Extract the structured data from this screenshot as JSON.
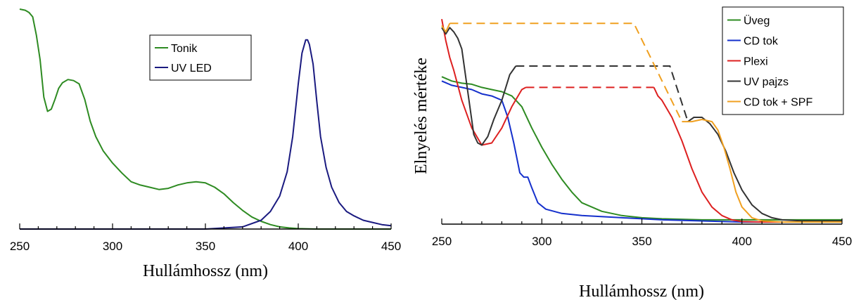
{
  "chart_data": [
    {
      "type": "line",
      "xlabel": "Hullámhossz (nm)",
      "ylabel": "",
      "xlim": [
        250,
        450
      ],
      "ylim": [
        0,
        1
      ],
      "xticks": [
        250,
        300,
        350,
        400,
        450
      ],
      "grid": false,
      "legend_position": "top-center",
      "series": [
        {
          "name": "Tonik",
          "color": "#2e8b22",
          "x": [
            250,
            253,
            255,
            257,
            259,
            261,
            263,
            265,
            267,
            269,
            271,
            273,
            276,
            279,
            282,
            285,
            288,
            291,
            295,
            300,
            305,
            310,
            315,
            320,
            325,
            330,
            335,
            340,
            345,
            350,
            355,
            360,
            365,
            370,
            375,
            380,
            385,
            390,
            395,
            400,
            410,
            420,
            430,
            440,
            450
          ],
          "y": [
            1.0,
            0.995,
            0.985,
            0.965,
            0.88,
            0.77,
            0.6,
            0.535,
            0.545,
            0.59,
            0.64,
            0.665,
            0.68,
            0.675,
            0.66,
            0.59,
            0.49,
            0.42,
            0.355,
            0.3,
            0.255,
            0.215,
            0.2,
            0.19,
            0.18,
            0.185,
            0.2,
            0.21,
            0.215,
            0.21,
            0.19,
            0.16,
            0.12,
            0.085,
            0.055,
            0.035,
            0.02,
            0.01,
            0.005,
            0.002,
            0.0,
            0.0,
            0.0,
            0.0,
            0.0
          ]
        },
        {
          "name": "UV LED",
          "color": "#1a1a80",
          "x": [
            250,
            300,
            350,
            370,
            380,
            385,
            390,
            394,
            397,
            400,
            402,
            404,
            405,
            406,
            408,
            410,
            412,
            415,
            418,
            422,
            426,
            430,
            435,
            440,
            445,
            450
          ],
          "y": [
            0.0,
            0.0,
            0.0,
            0.01,
            0.04,
            0.08,
            0.15,
            0.26,
            0.42,
            0.66,
            0.8,
            0.86,
            0.86,
            0.84,
            0.75,
            0.58,
            0.42,
            0.28,
            0.19,
            0.12,
            0.08,
            0.06,
            0.04,
            0.03,
            0.02,
            0.015
          ]
        }
      ]
    },
    {
      "type": "line",
      "xlabel": "Hullámhossz (nm)",
      "ylabel": "Elnyelés mértéke",
      "xlim": [
        250,
        450
      ],
      "ylim": [
        0,
        1
      ],
      "xticks": [
        250,
        300,
        350,
        400,
        450
      ],
      "grid": false,
      "legend_position": "top-right",
      "series": [
        {
          "name": "Üveg",
          "color": "#2e8b22",
          "x": [
            250,
            255,
            260,
            265,
            270,
            275,
            280,
            285,
            290,
            295,
            300,
            305,
            310,
            315,
            320,
            330,
            340,
            350,
            360,
            380,
            400,
            450
          ],
          "y": [
            0.69,
            0.67,
            0.66,
            0.655,
            0.64,
            0.63,
            0.62,
            0.6,
            0.55,
            0.45,
            0.36,
            0.28,
            0.21,
            0.15,
            0.1,
            0.06,
            0.04,
            0.03,
            0.025,
            0.02,
            0.02,
            0.02
          ]
        },
        {
          "name": "CD tok",
          "color": "#1530cc",
          "x": [
            250,
            255,
            260,
            265,
            270,
            275,
            280,
            283,
            286,
            289,
            291,
            293,
            295,
            298,
            302,
            310,
            320,
            340,
            360,
            400,
            450
          ],
          "y": [
            0.67,
            0.65,
            0.64,
            0.63,
            0.61,
            0.6,
            0.58,
            0.5,
            0.38,
            0.24,
            0.22,
            0.22,
            0.17,
            0.1,
            0.07,
            0.05,
            0.04,
            0.03,
            0.02,
            0.01,
            0.01
          ]
        },
        {
          "name": "Plexi",
          "color": "#dd2020",
          "x": [
            250,
            252,
            254,
            256,
            258,
            260,
            265,
            270,
            275,
            280,
            285,
            290,
            292
          ],
          "y": [
            0.96,
            0.86,
            0.78,
            0.72,
            0.65,
            0.58,
            0.45,
            0.37,
            0.38,
            0.45,
            0.55,
            0.63,
            0.64
          ],
          "dashed": {
            "x": [
              292,
              356
            ],
            "y": [
              0.64,
              0.64
            ]
          },
          "tail": {
            "x": [
              356,
              358,
              360,
              365,
              370,
              375,
              380,
              385,
              390,
              395,
              400,
              410,
              420,
              450
            ],
            "y": [
              0.64,
              0.6,
              0.58,
              0.5,
              0.39,
              0.26,
              0.15,
              0.08,
              0.04,
              0.02,
              0.012,
              0.01,
              0.01,
              0.01
            ]
          }
        },
        {
          "name": "UV pajzs",
          "color": "#333333",
          "x": [
            250,
            252,
            254,
            256,
            258,
            260,
            263,
            266,
            268,
            270,
            273,
            276,
            280,
            284,
            287
          ],
          "y": [
            0.92,
            0.89,
            0.92,
            0.9,
            0.87,
            0.82,
            0.62,
            0.42,
            0.38,
            0.37,
            0.41,
            0.49,
            0.58,
            0.7,
            0.74
          ],
          "dashed": {
            "x": [
              287,
              364,
              373
            ],
            "y": [
              0.74,
              0.74,
              0.48
            ]
          },
          "tail": {
            "x": [
              373,
              376,
              380,
              384,
              388,
              392,
              396,
              400,
              405,
              410,
              415,
              420,
              430,
              450
            ],
            "y": [
              0.48,
              0.5,
              0.5,
              0.47,
              0.42,
              0.34,
              0.24,
              0.16,
              0.09,
              0.05,
              0.03,
              0.02,
              0.015,
              0.015
            ]
          }
        },
        {
          "name": "CD tok + SPF",
          "color": "#f0a020",
          "x": [
            250,
            252,
            254
          ],
          "y": [
            0.93,
            0.9,
            0.94
          ],
          "dashed": {
            "x": [
              254,
              346,
              370
            ],
            "y": [
              0.94,
              0.94,
              0.48
            ]
          },
          "tail": {
            "x": [
              370,
              375,
              380,
              385,
              388,
              391,
              394,
              397,
              400,
              405,
              410,
              420,
              450
            ],
            "y": [
              0.48,
              0.48,
              0.49,
              0.48,
              0.44,
              0.36,
              0.26,
              0.15,
              0.08,
              0.03,
              0.015,
              0.01,
              0.01
            ]
          }
        }
      ]
    }
  ]
}
